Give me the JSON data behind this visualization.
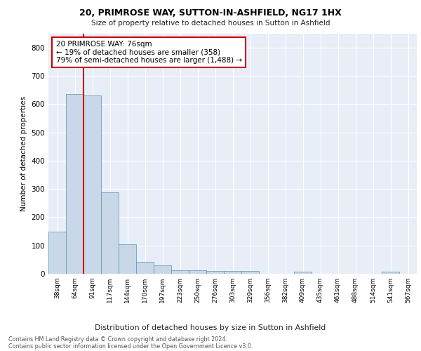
{
  "title": "20, PRIMROSE WAY, SUTTON-IN-ASHFIELD, NG17 1HX",
  "subtitle": "Size of property relative to detached houses in Sutton in Ashfield",
  "xlabel": "Distribution of detached houses by size in Sutton in Ashfield",
  "ylabel": "Number of detached properties",
  "bar_labels": [
    "38sqm",
    "64sqm",
    "91sqm",
    "117sqm",
    "144sqm",
    "170sqm",
    "197sqm",
    "223sqm",
    "250sqm",
    "276sqm",
    "303sqm",
    "329sqm",
    "356sqm",
    "382sqm",
    "409sqm",
    "435sqm",
    "461sqm",
    "488sqm",
    "514sqm",
    "541sqm",
    "567sqm"
  ],
  "bar_values": [
    150,
    635,
    630,
    287,
    103,
    42,
    29,
    12,
    12,
    11,
    10,
    10,
    0,
    0,
    7,
    0,
    0,
    0,
    0,
    8,
    0
  ],
  "bar_color": "#c8d8e8",
  "bar_edge_color": "#6090b0",
  "vline_x": 1.5,
  "vline_color": "#cc0000",
  "annotation_text": "20 PRIMROSE WAY: 76sqm\n← 19% of detached houses are smaller (358)\n79% of semi-detached houses are larger (1,488) →",
  "annotation_box_color": "#ffffff",
  "annotation_border_color": "#cc0000",
  "ylim": [
    0,
    850
  ],
  "yticks": [
    0,
    100,
    200,
    300,
    400,
    500,
    600,
    700,
    800
  ],
  "background_color": "#e8eef8",
  "grid_color": "#ffffff",
  "footer_line1": "Contains HM Land Registry data © Crown copyright and database right 2024.",
  "footer_line2": "Contains public sector information licensed under the Open Government Licence v3.0."
}
